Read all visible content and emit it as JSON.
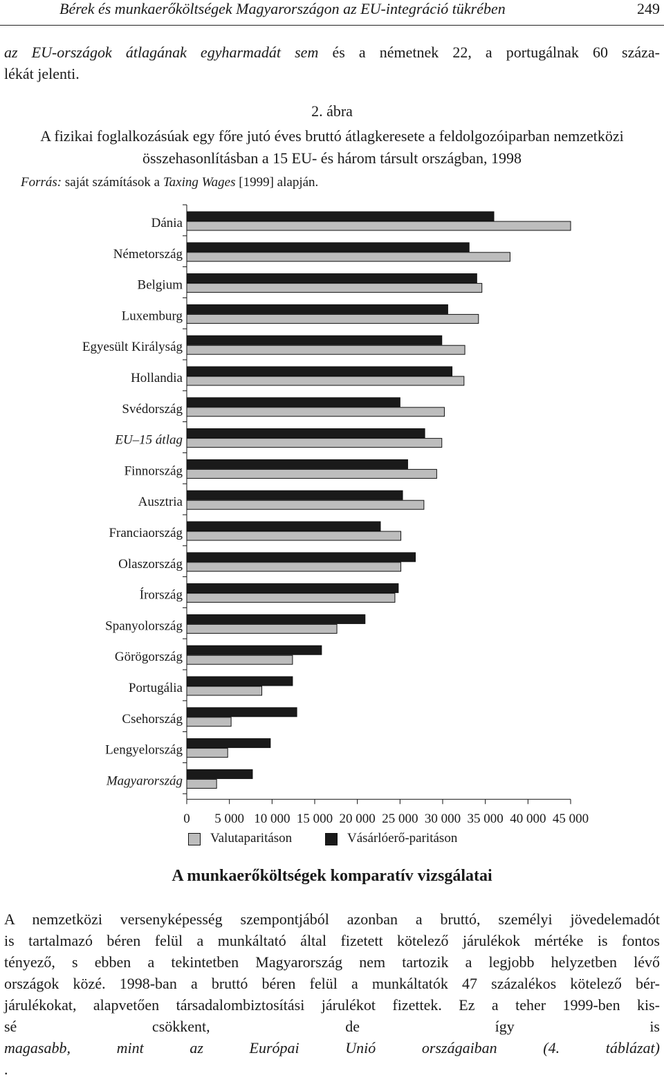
{
  "header": {
    "running_title": "Bérek és munkaerőköltségek Magyarországon az EU-integráció tükrében",
    "page_number": "249"
  },
  "intro": {
    "line1_italic": "az EU-országok átlagának egyharmadát sem",
    "line1_rest": " és a németnek 22, a portugálnak 60 száza-",
    "line2": "lékát jelenti."
  },
  "figure": {
    "number": "2. ábra",
    "caption_line1": "A fizikai foglalkozásúak egy főre jutó éves bruttó átlagkeresete a feldolgozóiparban nemzetközi",
    "caption_line2": "összehasonlításban a 15 EU- és három társult országban, 1998",
    "source_label": "Forrás:",
    "source_text1": " saját számítások a ",
    "source_italic": "Taxing Wages",
    "source_text2": " [1999] alapján."
  },
  "chart_data": {
    "type": "bar",
    "orientation": "horizontal",
    "title": "",
    "xlabel": "",
    "ylabel": "",
    "xlim": [
      0,
      45000
    ],
    "x_ticks": [
      0,
      5000,
      10000,
      15000,
      20000,
      25000,
      30000,
      35000,
      40000,
      45000
    ],
    "x_tick_labels": [
      "0",
      "5 000",
      "10 000",
      "15 000",
      "20 000",
      "25 000",
      "30 000",
      "35 000",
      "40 000",
      "45 000"
    ],
    "grid": false,
    "legend_position": "bottom",
    "categories": [
      "Dánia",
      "Németország",
      "Belgium",
      "Luxemburg",
      "Egyesült Királyság",
      "Hollandia",
      "Svédország",
      "EU–15 átlag",
      "Finnország",
      "Ausztria",
      "Franciaország",
      "Olaszország",
      "Írország",
      "Spanyolország",
      "Görögország",
      "Portugália",
      "Csehország",
      "Lengyelország",
      "Magyarország"
    ],
    "italic_categories": [
      "EU–15 átlag",
      "Magyarország"
    ],
    "series": [
      {
        "name": "Vásárlóerő-paritáson",
        "color": "#1a1a1a",
        "values": [
          36000,
          33100,
          34000,
          30600,
          29900,
          31100,
          25000,
          27900,
          25900,
          25300,
          22700,
          26800,
          24800,
          20900,
          15800,
          12400,
          12900,
          9800,
          7700
        ]
      },
      {
        "name": "Valutaparitáson",
        "color": "#bdbdbd",
        "values": [
          45000,
          37900,
          34600,
          34200,
          32600,
          32500,
          30200,
          29900,
          29300,
          27800,
          25100,
          25100,
          24400,
          17600,
          12400,
          8800,
          5200,
          4800,
          3500
        ]
      }
    ]
  },
  "section": {
    "heading": "A munkaerőköltségek komparatív vizsgálatai"
  },
  "body": {
    "lines": [
      "A nemzetközi versenyképesség szempontjából azonban a bruttó, személyi jövedelemadót",
      "is tartalmazó béren felül a munkáltató által fizetett kötelező járulékok mértéke is fontos",
      "tényező, s ebben a tekintetben Magyarország nem tartozik a legjobb helyzetben lévő",
      "országok közé. 1998-ban a bruttó béren felül a munkáltatók 47 százalékos kötelező bér-",
      "járulékokat, alapvetően társadalombiztosítási járulékot fizettek. Ez a teher 1999-ben kis-"
    ],
    "last_line_start": "sé csökkent, de így is ",
    "last_line_italic": "magasabb, mint az Európai Unió országaiban (4. táblázat)",
    "last_line_end": "."
  }
}
